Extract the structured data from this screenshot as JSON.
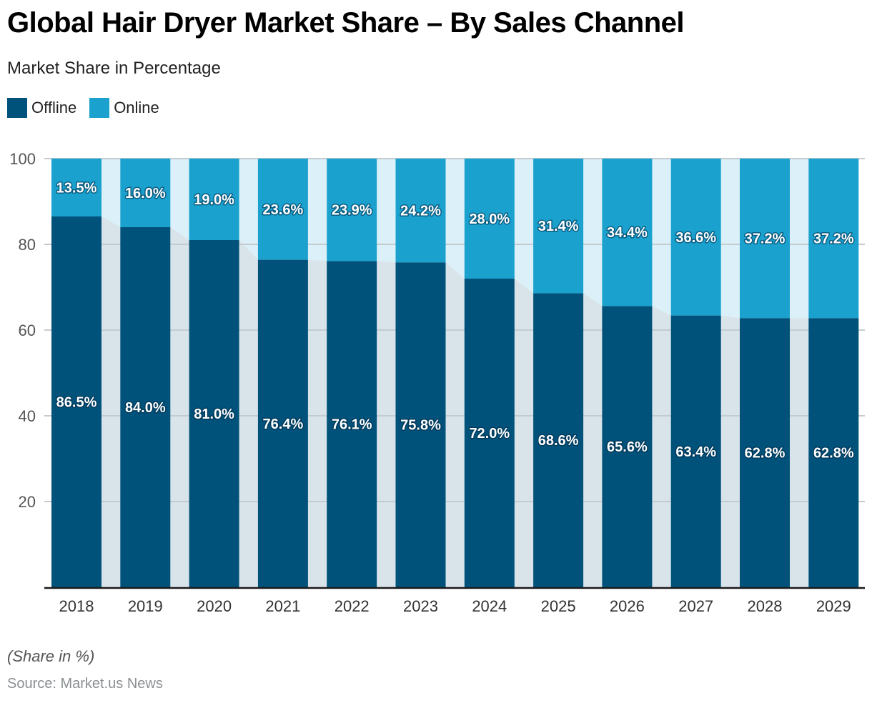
{
  "header": {
    "title": "Global Hair Dryer Market Share – By Sales Channel",
    "subtitle": "Market Share in Percentage"
  },
  "legend": {
    "items": [
      {
        "label": "Offline",
        "color": "#00527a"
      },
      {
        "label": "Online",
        "color": "#1aa1ce"
      }
    ]
  },
  "footer": {
    "note": "(Share in %)",
    "source": "Source: Market.us News"
  },
  "colors": {
    "offline": "#00527a",
    "online": "#1aa1ce",
    "offline_connector": "#d9e3ea",
    "online_connector": "#dbf0f8",
    "gridline": "#c3cbd0",
    "axis": "#1a1a1a"
  },
  "chart_data": {
    "type": "bar",
    "stacked": true,
    "title": "Global Hair Dryer Market Share – By Sales Channel",
    "subtitle": "Market Share in Percentage",
    "xlabel": "",
    "ylabel": "",
    "ylim": [
      0,
      100
    ],
    "yticks": [
      20,
      40,
      60,
      80,
      100
    ],
    "grid": true,
    "legend_position": "top-left",
    "categories": [
      "2018",
      "2019",
      "2020",
      "2021",
      "2022",
      "2023",
      "2024",
      "2025",
      "2026",
      "2027",
      "2028",
      "2029"
    ],
    "series": [
      {
        "name": "Offline",
        "values": [
          86.5,
          84.0,
          81.0,
          76.4,
          76.1,
          75.8,
          72.0,
          68.6,
          65.6,
          63.4,
          62.8,
          62.8
        ],
        "labels": [
          "86.5%",
          "84.0%",
          "81.0%",
          "76.4%",
          "76.1%",
          "75.8%",
          "72.0%",
          "68.6%",
          "65.6%",
          "63.4%",
          "62.8%",
          "62.8%"
        ]
      },
      {
        "name": "Online",
        "values": [
          13.5,
          16.0,
          19.0,
          23.6,
          23.9,
          24.2,
          28.0,
          31.4,
          34.4,
          36.6,
          37.2,
          37.2
        ],
        "labels": [
          "13.5%",
          "16.0%",
          "19.0%",
          "23.6%",
          "23.9%",
          "24.2%",
          "28.0%",
          "31.4%",
          "34.4%",
          "36.6%",
          "37.2%",
          "37.2%"
        ]
      }
    ],
    "annotations": [
      "(Share in %)",
      "Source: Market.us News"
    ]
  }
}
